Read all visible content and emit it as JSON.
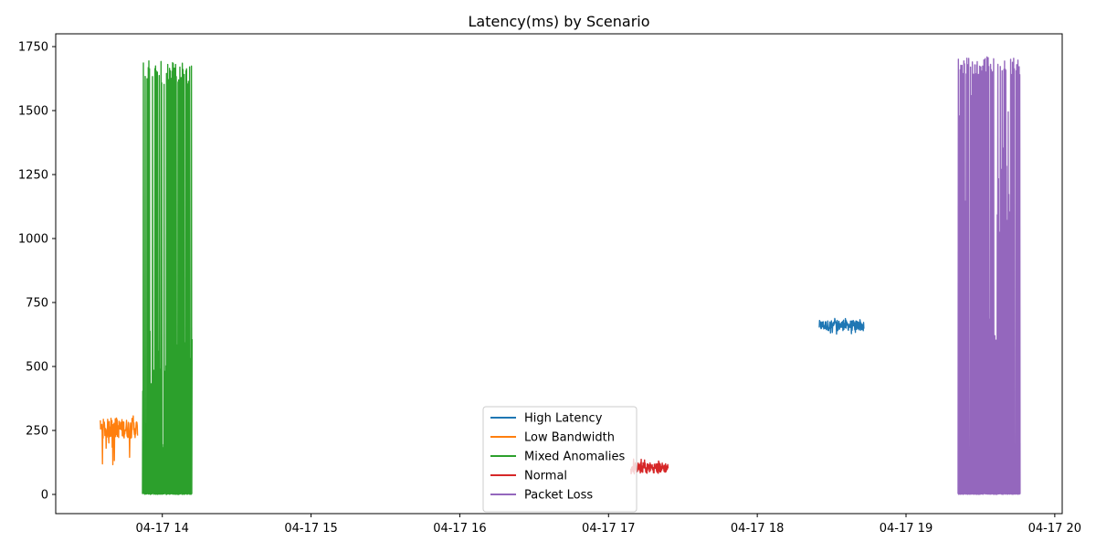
{
  "chart_data": {
    "type": "line",
    "title": "Latency(ms) by Scenario",
    "xlabel": "",
    "ylabel": "",
    "x_axis": {
      "type": "datetime",
      "range": [
        "2023-04-17 13:17",
        "2023-04-17 20:03"
      ],
      "ticks": [
        {
          "value": "2023-04-17 14:00",
          "label": "04-17 14"
        },
        {
          "value": "2023-04-17 15:00",
          "label": "04-17 15"
        },
        {
          "value": "2023-04-17 16:00",
          "label": "04-17 16"
        },
        {
          "value": "2023-04-17 17:00",
          "label": "04-17 17"
        },
        {
          "value": "2023-04-17 18:00",
          "label": "04-17 18"
        },
        {
          "value": "2023-04-17 19:00",
          "label": "04-17 19"
        },
        {
          "value": "2023-04-17 20:00",
          "label": "04-17 20"
        }
      ]
    },
    "y_axis": {
      "range": [
        -75,
        1800
      ],
      "ticks": [
        {
          "value": 0,
          "label": "0"
        },
        {
          "value": 250,
          "label": "250"
        },
        {
          "value": 500,
          "label": "500"
        },
        {
          "value": 750,
          "label": "750"
        },
        {
          "value": 1000,
          "label": "1000"
        },
        {
          "value": 1250,
          "label": "1250"
        },
        {
          "value": 1500,
          "label": "1500"
        },
        {
          "value": 1750,
          "label": "1750"
        }
      ]
    },
    "grid": false,
    "legend": {
      "position": "bottom-center"
    },
    "series": [
      {
        "name": "High Latency",
        "color": "#1f77b4",
        "start": "2023-04-17 18:25",
        "end": "2023-04-17 18:43",
        "pattern": "band",
        "low": 620,
        "high": 688,
        "dense_low": 640,
        "dense_high": 680
      },
      {
        "name": "Low Bandwidth",
        "color": "#ff7f0e",
        "start": "2023-04-17 13:35",
        "end": "2023-04-17 13:50",
        "pattern": "band",
        "low": 100,
        "high": 310,
        "dense_low": 220,
        "dense_high": 295
      },
      {
        "name": "Mixed Anomalies",
        "color": "#2ca02c",
        "start": "2023-04-17 13:52",
        "end": "2023-04-17 14:12",
        "pattern": "spikes",
        "low": 0,
        "high": 1695,
        "mid_high": 660,
        "spike_low": 1600
      },
      {
        "name": "Normal",
        "color": "#d62728",
        "start": "2023-04-17 17:09",
        "end": "2023-04-17 17:24",
        "pattern": "band",
        "low": 80,
        "high": 140,
        "dense_low": 85,
        "dense_high": 125
      },
      {
        "name": "Packet Loss",
        "color": "#9467bd",
        "start": "2023-04-17 19:21",
        "end": "2023-04-17 19:46",
        "pattern": "spikes",
        "low": 0,
        "high": 1710,
        "mid_high": 1650,
        "spike_low": 1640
      }
    ]
  }
}
